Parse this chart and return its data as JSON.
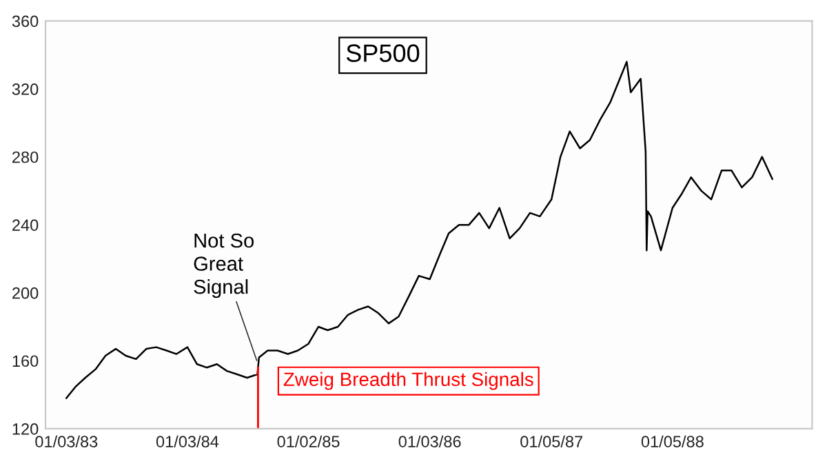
{
  "chart_data": {
    "type": "line",
    "title": "SP500",
    "x": [
      "1983-01-03",
      "1983-02-01",
      "1983-03-01",
      "1983-04-01",
      "1983-05-01",
      "1983-06-01",
      "1983-07-01",
      "1983-08-01",
      "1983-09-01",
      "1983-10-01",
      "1983-11-01",
      "1983-12-01",
      "1984-01-03",
      "1984-02-01",
      "1984-03-01",
      "1984-04-01",
      "1984-05-01",
      "1984-06-01",
      "1984-07-01",
      "1984-08-01",
      "1984-08-06",
      "1984-09-01",
      "1984-10-01",
      "1984-11-01",
      "1984-12-01",
      "1985-01-02",
      "1985-02-01",
      "1985-03-01",
      "1985-04-01",
      "1985-05-01",
      "1985-06-01",
      "1985-07-01",
      "1985-08-01",
      "1985-09-01",
      "1985-10-01",
      "1985-11-01",
      "1985-12-01",
      "1986-01-03",
      "1986-02-01",
      "1986-03-01",
      "1986-04-01",
      "1986-05-01",
      "1986-06-01",
      "1986-07-01",
      "1986-08-01",
      "1986-09-01",
      "1986-10-01",
      "1986-11-01",
      "1986-12-01",
      "1987-01-05",
      "1987-02-01",
      "1987-03-01",
      "1987-04-01",
      "1987-05-01",
      "1987-06-01",
      "1987-07-01",
      "1987-08-20",
      "1987-09-01",
      "1987-10-01",
      "1987-10-16",
      "1987-10-19",
      "1987-10-22",
      "1987-11-01",
      "1987-12-01",
      "1988-01-05",
      "1988-02-01",
      "1988-03-01",
      "1988-04-01",
      "1988-05-01",
      "1988-06-01",
      "1988-07-01",
      "1988-08-01",
      "1988-09-01",
      "1988-10-01",
      "1988-11-01"
    ],
    "series": [
      {
        "color": "#000000",
        "values": [
          138,
          145,
          150,
          155,
          163,
          167,
          163,
          161,
          167,
          168,
          166,
          164,
          168,
          158,
          156,
          158,
          154,
          152,
          150,
          152,
          162,
          166,
          166,
          164,
          166,
          170,
          180,
          178,
          180,
          187,
          190,
          192,
          188,
          182,
          186,
          198,
          210,
          208,
          222,
          235,
          240,
          240,
          247,
          238,
          250,
          232,
          238,
          247,
          245,
          255,
          280,
          295,
          285,
          290,
          302,
          312,
          336,
          318,
          326,
          283,
          225,
          248,
          245,
          225,
          250,
          258,
          268,
          260,
          255,
          272,
          272,
          262,
          268,
          280,
          267
        ]
      }
    ],
    "xlim": [
      "1982-11-01",
      "1989-03-01"
    ],
    "xticks": [
      {
        "value": "1983-01-03",
        "label": "01/03/83"
      },
      {
        "value": "1984-01-03",
        "label": "01/03/84"
      },
      {
        "value": "1985-01-02",
        "label": "01/02/85"
      },
      {
        "value": "1986-01-03",
        "label": "01/03/86"
      },
      {
        "value": "1987-01-05",
        "label": "01/05/87"
      },
      {
        "value": "1988-01-05",
        "label": "01/05/88"
      }
    ],
    "ylim": [
      120,
      360
    ],
    "yticks": [
      120,
      160,
      200,
      240,
      280,
      320,
      360
    ],
    "ref_lines": [
      {
        "axis": "x",
        "value": "1984-08-03",
        "label": "Zweig Breadth Thrust Signals",
        "color": "#ff0000"
      }
    ],
    "annotations": [
      {
        "text": "Not So\nGreat\nSignal",
        "x": "1984-08-03",
        "y": 158
      }
    ],
    "grid": false
  }
}
